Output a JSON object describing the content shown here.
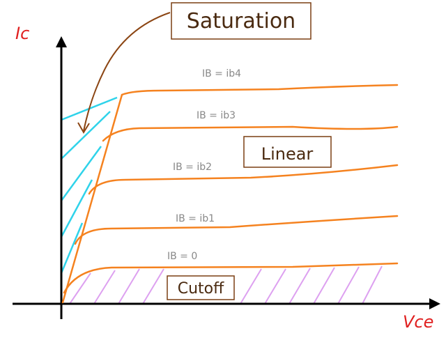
{
  "axes": {
    "y_label": "Ic",
    "x_label": "Vce"
  },
  "regions": [
    {
      "label": "Saturation"
    },
    {
      "label": "Linear"
    },
    {
      "label": "Cutoff"
    }
  ],
  "curves": [
    {
      "label": "IB = ib4"
    },
    {
      "label": "IB = ib3"
    },
    {
      "label": "IB = ib2"
    },
    {
      "label": "IB = ib1"
    },
    {
      "label": "IB = 0"
    }
  ]
}
